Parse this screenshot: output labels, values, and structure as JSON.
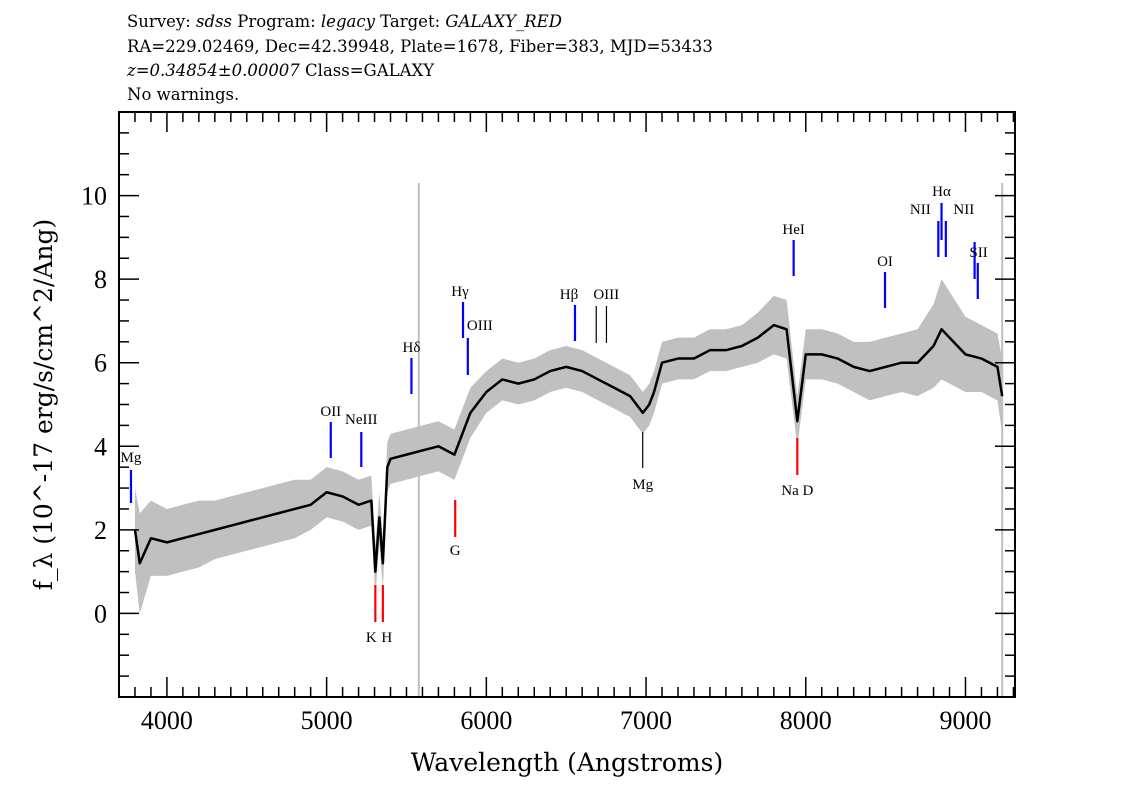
{
  "header": {
    "line1": {
      "survey_label": "Survey: ",
      "survey": "sdss",
      "program_label": " Program: ",
      "program": "legacy",
      "target_label": " Target: ",
      "target": "GALAXY_RED"
    },
    "line2": "RA=229.02469, Dec=42.39948, Plate=1678, Fiber=383, MJD=53433",
    "line3": {
      "z": "z=0.34854±0.00007",
      "cls": " Class=GALAXY"
    },
    "line4": "No warnings."
  },
  "chart_data": {
    "type": "line",
    "xlabel": "Wavelength (Angstroms)",
    "ylabel": "f_λ (10^-17 erg/s/cm^2/Ang)",
    "xlim": [
      3700,
      9310
    ],
    "ylim": [
      -2,
      12
    ],
    "xticks": [
      4000,
      5000,
      6000,
      7000,
      8000,
      9000
    ],
    "yticks": [
      0,
      2,
      4,
      6,
      8,
      10
    ],
    "grid": false,
    "colors": {
      "flux": "#000000",
      "error_band": "#c0c0c0",
      "emission": "#0000ff",
      "absorption": "#ff0000",
      "weak": "#000000"
    },
    "redshift": 0.34854,
    "series": [
      {
        "x": [
          3800,
          3830,
          3900,
          4000,
          4100,
          4200,
          4300,
          4400,
          4500,
          4600,
          4700,
          4800,
          4900,
          5000,
          5100,
          5200,
          5280,
          5305,
          5330,
          5352,
          5380,
          5400,
          5500,
          5600,
          5700,
          5800,
          5850,
          5900,
          6000,
          6100,
          6200,
          6300,
          6400,
          6500,
          6600,
          6700,
          6800,
          6900,
          6980,
          7020,
          7050,
          7100,
          7200,
          7300,
          7400,
          7500,
          7600,
          7700,
          7800,
          7880,
          7947,
          8000,
          8100,
          8200,
          8300,
          8400,
          8500,
          8600,
          8700,
          8800,
          8850,
          8900,
          9000,
          9100,
          9200,
          9230
        ],
        "flux": [
          2.0,
          1.2,
          1.8,
          1.7,
          1.8,
          1.9,
          2.0,
          2.1,
          2.2,
          2.3,
          2.4,
          2.5,
          2.6,
          2.9,
          2.8,
          2.6,
          2.7,
          1.0,
          2.3,
          1.2,
          3.5,
          3.7,
          3.8,
          3.9,
          4.0,
          3.8,
          4.3,
          4.8,
          5.3,
          5.6,
          5.5,
          5.6,
          5.8,
          5.9,
          5.8,
          5.6,
          5.4,
          5.2,
          4.8,
          5.0,
          5.3,
          6.0,
          6.1,
          6.1,
          6.3,
          6.3,
          6.4,
          6.6,
          6.9,
          6.8,
          4.6,
          6.2,
          6.2,
          6.1,
          5.9,
          5.8,
          5.9,
          6.0,
          6.0,
          6.4,
          6.8,
          6.6,
          6.2,
          6.1,
          5.9,
          5.2
        ],
        "error": [
          1.0,
          1.2,
          0.9,
          0.8,
          0.8,
          0.8,
          0.7,
          0.7,
          0.7,
          0.7,
          0.7,
          0.7,
          0.6,
          0.6,
          0.6,
          0.6,
          0.6,
          0.6,
          0.6,
          0.6,
          0.6,
          0.6,
          0.6,
          0.6,
          0.6,
          0.6,
          0.6,
          0.6,
          0.5,
          0.5,
          0.5,
          0.5,
          0.5,
          0.5,
          0.5,
          0.5,
          0.5,
          0.5,
          0.5,
          0.5,
          0.5,
          0.5,
          0.5,
          0.5,
          0.5,
          0.5,
          0.5,
          0.6,
          0.7,
          0.7,
          0.6,
          0.6,
          0.6,
          0.6,
          0.6,
          0.7,
          0.7,
          0.7,
          0.8,
          1.0,
          1.2,
          1.1,
          0.9,
          0.8,
          0.8,
          0.9
        ]
      }
    ],
    "sky_lines": [
      5577,
      9230
    ],
    "lines": [
      {
        "label": "Mg",
        "wavelength": 3775,
        "type": "emission"
      },
      {
        "label": "OII",
        "wavelength": 5026,
        "type": "emission"
      },
      {
        "label": "NeIII",
        "wavelength": 5217,
        "type": "emission"
      },
      {
        "label": "K",
        "wavelength": 5305,
        "type": "absorption"
      },
      {
        "label": "H",
        "wavelength": 5352,
        "type": "absorption"
      },
      {
        "label": "Hδ",
        "wavelength": 5531,
        "type": "emission"
      },
      {
        "label": "G",
        "wavelength": 5805,
        "type": "absorption"
      },
      {
        "label": "Hγ",
        "wavelength": 5854,
        "type": "emission"
      },
      {
        "label": "OIII",
        "wavelength": 5884,
        "type": "emission"
      },
      {
        "label": "Hβ",
        "wavelength": 6555,
        "type": "emission"
      },
      {
        "label": "OIII",
        "wavelength": 6688,
        "type": "weak"
      },
      {
        "label": "",
        "wavelength": 6752,
        "type": "weak"
      },
      {
        "label": "Mg",
        "wavelength": 6979,
        "type": "weak"
      },
      {
        "label": "HeI",
        "wavelength": 7924,
        "type": "emission"
      },
      {
        "label": "Na D",
        "wavelength": 7947,
        "type": "absorption"
      },
      {
        "label": "OI",
        "wavelength": 8496,
        "type": "emission"
      },
      {
        "label": "NII",
        "wavelength": 8830,
        "type": "emission"
      },
      {
        "label": "Hα",
        "wavelength": 8850,
        "type": "emission"
      },
      {
        "label": "NII",
        "wavelength": 8877,
        "type": "emission"
      },
      {
        "label": "SII",
        "wavelength": 9057,
        "type": "emission"
      },
      {
        "label": "",
        "wavelength": 9077,
        "type": "emission"
      }
    ]
  }
}
